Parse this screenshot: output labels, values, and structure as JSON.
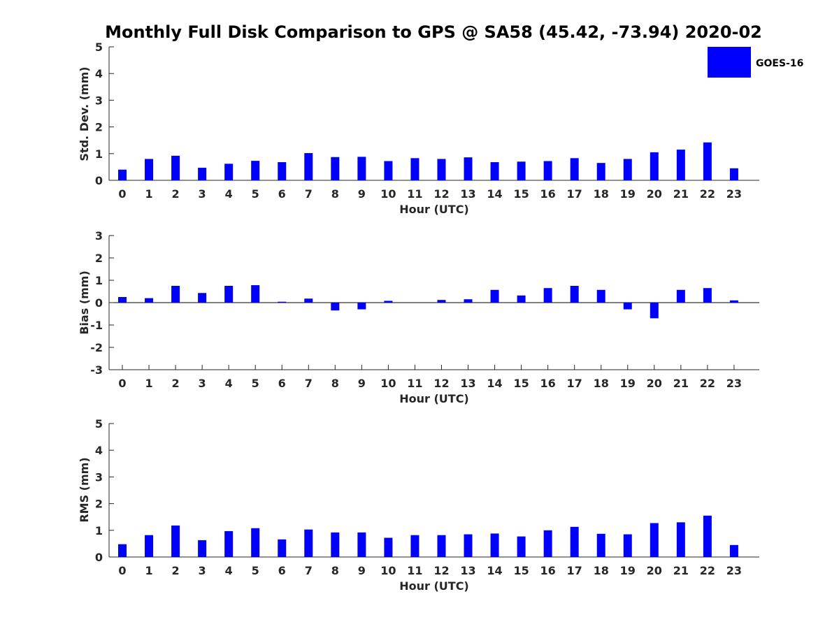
{
  "chart_data": {
    "type": "bar",
    "title": "Monthly Full Disk Comparison to GPS @ SA58 (45.42, -73.94) 2020-02",
    "legend": {
      "position": "top-right",
      "entries": [
        "GOES-16"
      ]
    },
    "bar_color": "#0000ff",
    "categories": [
      "0",
      "1",
      "2",
      "3",
      "4",
      "5",
      "6",
      "7",
      "8",
      "9",
      "10",
      "11",
      "12",
      "13",
      "14",
      "15",
      "16",
      "17",
      "18",
      "19",
      "20",
      "21",
      "22",
      "23"
    ],
    "panels": [
      {
        "xlabel": "Hour (UTC)",
        "ylabel": "Std. Dev. (mm)",
        "ylim": [
          0,
          5
        ],
        "yticks": [
          "0",
          "1",
          "2",
          "3",
          "4",
          "5"
        ],
        "series": [
          {
            "name": "GOES-16",
            "values": [
              0.4,
              0.8,
              0.92,
              0.47,
              0.62,
              0.73,
              0.68,
              1.02,
              0.87,
              0.88,
              0.72,
              0.83,
              0.8,
              0.86,
              0.68,
              0.7,
              0.72,
              0.83,
              0.65,
              0.8,
              1.05,
              1.15,
              1.42,
              0.45
            ]
          }
        ]
      },
      {
        "xlabel": "Hour (UTC)",
        "ylabel": "Bias (mm)",
        "ylim": [
          -3,
          3
        ],
        "yticks": [
          "-3",
          "-2",
          "-1",
          "0",
          "1",
          "2",
          "3"
        ],
        "zero_line": true,
        "series": [
          {
            "name": "GOES-16",
            "values": [
              0.25,
              0.2,
              0.75,
              0.43,
              0.75,
              0.78,
              0.04,
              0.18,
              -0.35,
              -0.3,
              0.08,
              0.0,
              0.12,
              0.15,
              0.57,
              0.32,
              0.65,
              0.75,
              0.57,
              -0.3,
              -0.7,
              0.57,
              0.65,
              0.1
            ]
          }
        ]
      },
      {
        "xlabel": "Hour (UTC)",
        "ylabel": "RMS (mm)",
        "ylim": [
          0,
          5
        ],
        "yticks": [
          "0",
          "1",
          "2",
          "3",
          "4",
          "5"
        ],
        "series": [
          {
            "name": "GOES-16",
            "values": [
              0.48,
              0.82,
              1.18,
              0.63,
              0.97,
              1.08,
              0.66,
              1.03,
              0.92,
              0.92,
              0.72,
              0.82,
              0.82,
              0.85,
              0.88,
              0.77,
              1.0,
              1.13,
              0.87,
              0.85,
              1.27,
              1.3,
              1.55,
              0.45
            ]
          }
        ]
      }
    ]
  }
}
